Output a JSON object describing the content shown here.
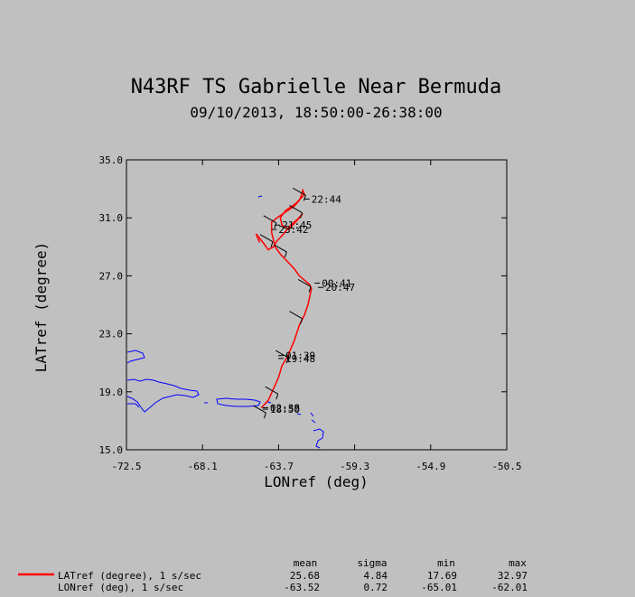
{
  "chart_data": {
    "type": "line",
    "title": "N43RF TS Gabrielle Near Bermuda",
    "subtitle": "09/10/2013, 18:50:00-26:38:00",
    "xlabel": "LONref (deg)",
    "ylabel": "LATref (degree)",
    "xlim": [
      -72.5,
      -50.5
    ],
    "ylim": [
      15.0,
      35.0
    ],
    "xticks": [
      "-72.5",
      "-68.1",
      "-63.7",
      "-59.3",
      "-54.9",
      "-50.5"
    ],
    "yticks": [
      "35.0",
      "31.0",
      "27.0",
      "23.0",
      "19.0",
      "15.0"
    ],
    "colors": {
      "track": "#ff0000",
      "coastline": "#0000ff",
      "stats_line": "#ff0000"
    },
    "series": [
      {
        "name": "LATref (degree), 1 s/sec",
        "x": [
          -64.7,
          -64.3,
          -64.0,
          -63.7,
          -63.5,
          -63.2,
          -62.8,
          -62.5,
          -62.2,
          -62.0,
          -61.8,
          -61.9,
          -62.2,
          -62.5,
          -62.8,
          -63.2,
          -63.6,
          -63.9,
          -64.0,
          -64.1,
          -64.1,
          -63.8,
          -63.3,
          -62.8,
          -62.5,
          -62.4,
          -62.3,
          -62.2,
          -62.7,
          -63.3,
          -63.6,
          -63.5,
          -63.1,
          -62.8,
          -62.5,
          -62.3,
          -62.6,
          -63.0,
          -63.4,
          -63.8,
          -64.0,
          -64.3,
          -64.6,
          -65.0,
          -64.8
        ],
        "y": [
          17.9,
          18.4,
          19.2,
          20.0,
          20.8,
          21.4,
          22.5,
          23.6,
          24.3,
          25.0,
          26.1,
          26.4,
          26.7,
          27.0,
          27.5,
          28.0,
          28.5,
          29.0,
          29.5,
          30.0,
          30.7,
          31.0,
          31.4,
          31.8,
          32.2,
          32.5,
          32.9,
          32.6,
          32.0,
          31.5,
          31.0,
          30.5,
          30.2,
          30.6,
          31.0,
          31.3,
          30.9,
          30.5,
          29.9,
          29.4,
          29.0,
          28.8,
          29.3,
          29.9,
          29.3
        ]
      }
    ],
    "wind_barbs": [
      {
        "x": -64.8,
        "y": 17.8
      },
      {
        "x": -64.1,
        "y": 19.1
      },
      {
        "x": -63.5,
        "y": 21.6
      },
      {
        "x": -62.7,
        "y": 24.3
      },
      {
        "x": -62.2,
        "y": 26.5
      },
      {
        "x": -63.6,
        "y": 28.9
      },
      {
        "x": -64.4,
        "y": 29.6
      },
      {
        "x": -64.2,
        "y": 30.9
      },
      {
        "x": -62.7,
        "y": 31.6
      },
      {
        "x": -62.5,
        "y": 32.8
      }
    ],
    "time_labels": [
      {
        "text": "22:44",
        "x": -61.8,
        "y": 32.3
      },
      {
        "text": "21:45",
        "x": -63.5,
        "y": 30.5
      },
      {
        "text": "23:42",
        "x": -63.7,
        "y": 30.2
      },
      {
        "text": "00:41",
        "x": -61.2,
        "y": 26.5
      },
      {
        "text": "20:47",
        "x": -61.0,
        "y": 26.2
      },
      {
        "text": "01:39",
        "x": -63.3,
        "y": 21.5
      },
      {
        "text": "19:48",
        "x": -63.3,
        "y": 21.3
      },
      {
        "text": "02:38",
        "x": -64.2,
        "y": 17.9
      },
      {
        "text": "18:50",
        "x": -64.2,
        "y": 17.8
      }
    ],
    "stats": {
      "headers": [
        "mean",
        "sigma",
        "min",
        "max"
      ],
      "rows": [
        {
          "label": "LATref (degree), 1 s/sec",
          "mean": "25.68",
          "sigma": "4.84",
          "min": "17.69",
          "max": "32.97"
        },
        {
          "label": "LONref (deg), 1 s/sec",
          "mean": "-63.52",
          "sigma": "0.72",
          "min": "-65.01",
          "max": "-62.01"
        }
      ]
    }
  }
}
